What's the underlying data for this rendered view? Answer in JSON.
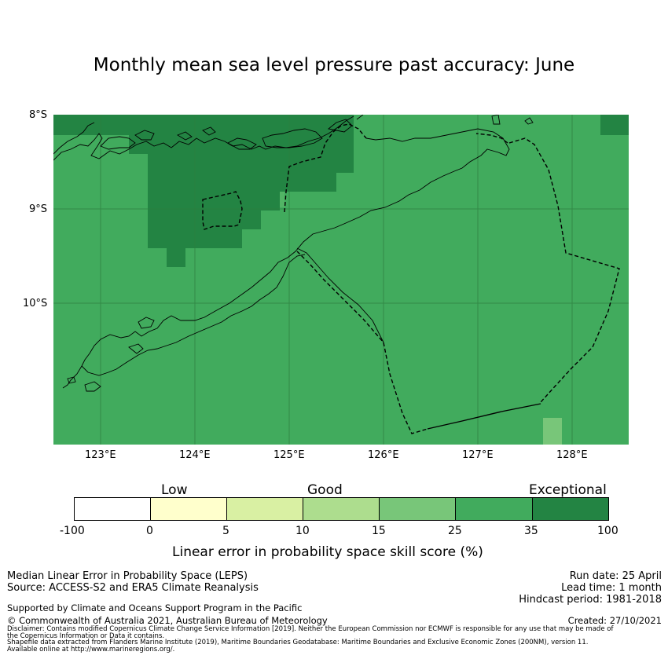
{
  "title": "Monthly mean sea level pressure past accuracy: June",
  "map": {
    "lat_labels": [
      "8°S",
      "9°S",
      "10°S"
    ],
    "lon_labels": [
      "123°E",
      "124°E",
      "125°E",
      "126°E",
      "127°E",
      "128°E"
    ],
    "colors": {
      "good": "#3fa95c",
      "exceptional": "#238447",
      "good_lighter": "#78c679",
      "coastline": "#000000",
      "grid": "#2e7d3e"
    }
  },
  "colorbar": {
    "categories": [
      "Low",
      "Good",
      "Exceptional"
    ],
    "ticks": [
      "-100",
      "0",
      "5",
      "10",
      "15",
      "25",
      "35",
      "100"
    ],
    "colors": [
      "#ffffff",
      "#ffffcc",
      "#d9f0a3",
      "#addd8e",
      "#78c679",
      "#41ab5d",
      "#238443"
    ],
    "label": "Linear error in probability space skill score (%)"
  },
  "footer": {
    "method": "Median Linear Error in Probability Space (LEPS)",
    "source": "Source: ACCESS-S2 and ERA5 Climate Reanalysis",
    "support": "Supported by Climate and Oceans Support Program in the Pacific",
    "copyright": "© Commonwealth of Australia 2021, Australian Bureau of Meteorology",
    "run_date": "Run date: 25 April",
    "lead_time": "Lead time: 1 month",
    "hindcast": "Hindcast period: 1981-2018",
    "created": "Created: 27/10/2021",
    "disclaimer_1": "Disclaimer: Contains modified Copernicus Climate Change Service Information [2019]. Neither the European Commission nor ECMWF is responsible for any use that may be made of",
    "disclaimer_2": "the Copernicus Information or Data it contains.",
    "shapefile_1": "Shapefile data extracted from Flanders Marine Institute (2019), Maritime Boundaries Geodatabase: Maritime Boundaries and Exclusive Economic Zones (200NM), version 11.",
    "shapefile_2": "Available online at http://www.marineregions.org/."
  }
}
